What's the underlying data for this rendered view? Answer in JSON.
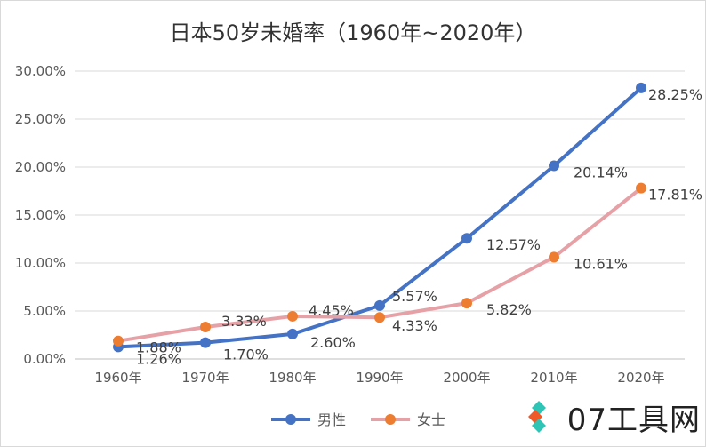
{
  "chart_data": {
    "type": "line",
    "title": "日本50岁未婚率（1960年~2020年）",
    "categories": [
      "1960年",
      "1970年",
      "1980年",
      "1990年",
      "2000年",
      "2010年",
      "2020年"
    ],
    "ylim": [
      0,
      30
    ],
    "yticks": [
      "0.00%",
      "5.00%",
      "10.00%",
      "15.00%",
      "20.00%",
      "25.00%",
      "30.00%"
    ],
    "grid": true,
    "legend_position": "bottom",
    "series": [
      {
        "name": "男性",
        "color": "#4472c4",
        "values": [
          1.26,
          1.7,
          2.6,
          5.57,
          12.57,
          20.14,
          28.25
        ],
        "labels": [
          "1.26%",
          "1.70%",
          "2.60%",
          "5.57%",
          "12.57%",
          "20.14%",
          "28.25%"
        ]
      },
      {
        "name": "女士",
        "color": "#e6a1a7",
        "marker_color": "#ed7d31",
        "values": [
          1.88,
          3.33,
          4.45,
          4.33,
          5.82,
          10.61,
          17.81
        ],
        "labels": [
          "1.88%",
          "3.33%",
          "4.45%",
          "4.33%",
          "5.82%",
          "10.61%",
          "17.81%"
        ]
      }
    ]
  },
  "watermark": {
    "text": "07工具网",
    "icon": "diamond-logo-icon"
  }
}
